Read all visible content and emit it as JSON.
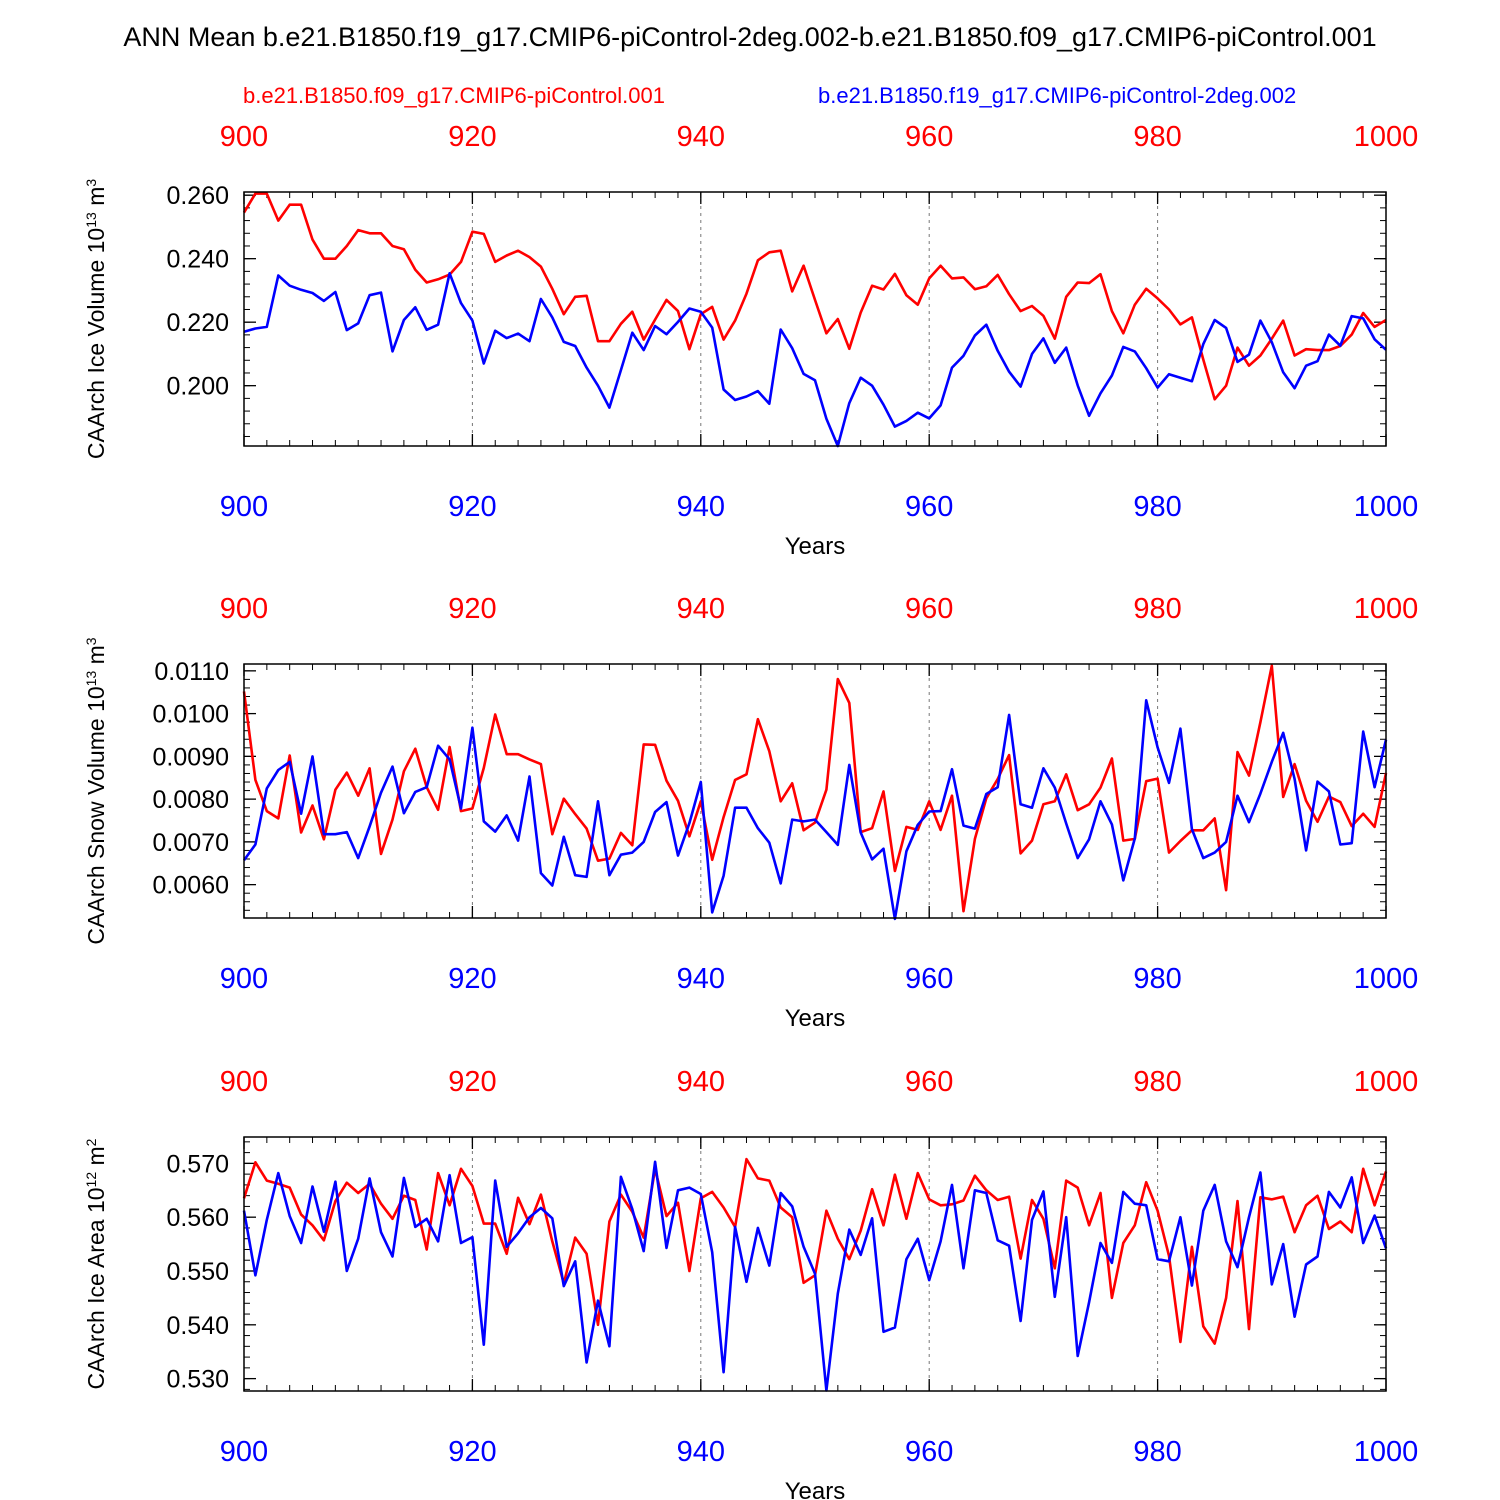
{
  "figure": {
    "title": "ANN Mean b.e21.B1850.f19_g17.CMIP6-piControl-2deg.002-b.e21.B1850.f09_g17.CMIP6-piControl.001",
    "legend": [
      {
        "label": "b.e21.B1850.f09_g17.CMIP6-piControl.001",
        "color": "#ff0000"
      },
      {
        "label": "b.e21.B1850.f19_g17.CMIP6-piControl-2deg.002",
        "color": "#0000ff"
      }
    ]
  },
  "chart_data": [
    {
      "type": "line",
      "ylabel": "CAArch Ice Volume 10",
      "ylabel_sup": "13",
      "ylabel_unit": " m",
      "ylabel_unit_sup": "3",
      "xlabel": "Years",
      "xlim": [
        900,
        1000
      ],
      "ylim": [
        0.181,
        0.261
      ],
      "xticks": [
        900,
        920,
        940,
        960,
        980,
        1000
      ],
      "xtick_labels": [
        "900",
        "920",
        "940",
        "960",
        "980",
        "1000"
      ],
      "yticks": [
        0.2,
        0.22,
        0.24,
        0.26
      ],
      "ytick_labels": [
        "0.200",
        "0.220",
        "0.240",
        "0.260"
      ],
      "yminor_step": 0.004,
      "x_start": 900,
      "series": [
        {
          "name": "b.e21.B1850.f09_g17.CMIP6-piControl.001",
          "color": "#ff0000",
          "values": [
            0.2545,
            0.2605,
            0.2605,
            0.252,
            0.257,
            0.257,
            0.246,
            0.24,
            0.24,
            0.244,
            0.249,
            0.248,
            0.248,
            0.244,
            0.243,
            0.2365,
            0.2325,
            0.2335,
            0.235,
            0.239,
            0.2485,
            0.2478,
            0.239,
            0.241,
            0.2425,
            0.2405,
            0.2375,
            0.2305,
            0.2225,
            0.228,
            0.2283,
            0.214,
            0.214,
            0.2195,
            0.2233,
            0.2145,
            0.2208,
            0.227,
            0.2235,
            0.2115,
            0.2225,
            0.2248,
            0.2145,
            0.2205,
            0.229,
            0.2395,
            0.242,
            0.2425,
            0.2297,
            0.2378,
            0.227,
            0.2165,
            0.221,
            0.2116,
            0.223,
            0.2315,
            0.2303,
            0.2352,
            0.2285,
            0.2255,
            0.2338,
            0.2378,
            0.2338,
            0.2341,
            0.2304,
            0.2313,
            0.2349,
            0.2288,
            0.2235,
            0.2251,
            0.222,
            0.2148,
            0.228,
            0.2325,
            0.2323,
            0.2351,
            0.2235,
            0.2165,
            0.2255,
            0.2305,
            0.2275,
            0.224,
            0.2193,
            0.2215,
            0.2082,
            0.1957,
            0.2,
            0.212,
            0.2063,
            0.2095,
            0.2148,
            0.2205,
            0.2095,
            0.2115,
            0.2112,
            0.2112,
            0.2125,
            0.2161,
            0.2229,
            0.2185,
            0.2207
          ]
        },
        {
          "name": "b.e21.B1850.f19_g17.CMIP6-piControl-2deg.002",
          "color": "#0000ff",
          "values": [
            0.217,
            0.218,
            0.2185,
            0.2347,
            0.2315,
            0.2302,
            0.2292,
            0.2267,
            0.2295,
            0.2175,
            0.2196,
            0.2285,
            0.2293,
            0.2108,
            0.2207,
            0.2247,
            0.2176,
            0.2192,
            0.2354,
            0.226,
            0.2205,
            0.207,
            0.2173,
            0.215,
            0.2164,
            0.214,
            0.2273,
            0.2215,
            0.2138,
            0.2125,
            0.2057,
            0.2,
            0.1931,
            0.2049,
            0.2167,
            0.2112,
            0.2188,
            0.2162,
            0.2201,
            0.2243,
            0.2233,
            0.2183,
            0.1988,
            0.1955,
            0.1966,
            0.1983,
            0.1943,
            0.2177,
            0.2118,
            0.2037,
            0.2017,
            0.1896,
            0.181,
            0.1945,
            0.2025,
            0.2,
            0.194,
            0.1871,
            0.1889,
            0.1915,
            0.1897,
            0.1938,
            0.2057,
            0.2094,
            0.2158,
            0.2192,
            0.211,
            0.2044,
            0.1997,
            0.21,
            0.2149,
            0.2072,
            0.212,
            0.2001,
            0.1905,
            0.1976,
            0.2032,
            0.2122,
            0.2108,
            0.2055,
            0.1994,
            0.2036,
            0.2025,
            0.2014,
            0.2131,
            0.2207,
            0.2182,
            0.2075,
            0.2098,
            0.2205,
            0.2137,
            0.2042,
            0.1992,
            0.2063,
            0.2077,
            0.2161,
            0.2126,
            0.2219,
            0.2212,
            0.2146,
            0.2113
          ]
        }
      ]
    },
    {
      "type": "line",
      "ylabel": "CAArch Snow Volume 10",
      "ylabel_sup": "13",
      "ylabel_unit": " m",
      "ylabel_unit_sup": "3",
      "xlabel": "Years",
      "xlim": [
        900,
        1000
      ],
      "ylim": [
        0.00522,
        0.01116
      ],
      "xticks": [
        900,
        920,
        940,
        960,
        980,
        1000
      ],
      "xtick_labels": [
        "900",
        "920",
        "940",
        "960",
        "980",
        "1000"
      ],
      "yticks": [
        0.006,
        0.007,
        0.008,
        0.009,
        0.01,
        0.011
      ],
      "ytick_labels": [
        "0.0060",
        "0.0070",
        "0.0080",
        "0.0090",
        "0.0100",
        "0.0110"
      ],
      "yminor_step": 0.0002,
      "x_start": 900,
      "series": [
        {
          "name": "b.e21.B1850.f09_g17.CMIP6-piControl.001",
          "color": "#ff0000",
          "values": [
            0.01052,
            0.00845,
            0.00772,
            0.00755,
            0.00902,
            0.00722,
            0.00785,
            0.00706,
            0.00822,
            0.00862,
            0.00808,
            0.00872,
            0.00672,
            0.00752,
            0.00865,
            0.00918,
            0.00828,
            0.00775,
            0.00922,
            0.00772,
            0.00778,
            0.00873,
            0.00998,
            0.00905,
            0.00905,
            0.00893,
            0.00882,
            0.00718,
            0.00801,
            0.00765,
            0.00731,
            0.00656,
            0.00661,
            0.00721,
            0.00692,
            0.00928,
            0.00927,
            0.00843,
            0.00796,
            0.00713,
            0.00795,
            0.00658,
            0.00758,
            0.00845,
            0.00858,
            0.00987,
            0.00912,
            0.00795,
            0.00837,
            0.00727,
            0.00745,
            0.00822,
            0.01081,
            0.01025,
            0.00723,
            0.00732,
            0.00818,
            0.00632,
            0.00735,
            0.00728,
            0.00795,
            0.00728,
            0.00808,
            0.00538,
            0.00707,
            0.00802,
            0.00847,
            0.00903,
            0.00673,
            0.00703,
            0.00788,
            0.00795,
            0.00858,
            0.00774,
            0.00788,
            0.00827,
            0.00895,
            0.00703,
            0.00707,
            0.00842,
            0.00848,
            0.00675,
            0.00702,
            0.00727,
            0.00727,
            0.00755,
            0.00587,
            0.0091,
            0.00855,
            0.0098,
            0.01112,
            0.00805,
            0.00882,
            0.00796,
            0.00747,
            0.00806,
            0.00793,
            0.00737,
            0.00766,
            0.00735,
            0.00861
          ]
        },
        {
          "name": "b.e21.B1850.f19_g17.CMIP6-piControl-2deg.002",
          "color": "#0000ff",
          "values": [
            0.00657,
            0.00694,
            0.00825,
            0.00868,
            0.00887,
            0.00766,
            0.009,
            0.00718,
            0.00718,
            0.00723,
            0.00662,
            0.00736,
            0.00815,
            0.00876,
            0.00767,
            0.00817,
            0.00828,
            0.00925,
            0.00893,
            0.00778,
            0.00967,
            0.00748,
            0.00724,
            0.00762,
            0.00703,
            0.00853,
            0.00627,
            0.00598,
            0.00712,
            0.00622,
            0.00618,
            0.00795,
            0.00622,
            0.0067,
            0.00675,
            0.007,
            0.0077,
            0.00793,
            0.00668,
            0.00744,
            0.0084,
            0.00535,
            0.00621,
            0.0078,
            0.0078,
            0.00732,
            0.00698,
            0.00603,
            0.00752,
            0.00748,
            0.00752,
            0.00723,
            0.00693,
            0.0088,
            0.00722,
            0.00659,
            0.00684,
            0.0052,
            0.00678,
            0.0074,
            0.00771,
            0.00772,
            0.0087,
            0.00738,
            0.00731,
            0.00812,
            0.00828,
            0.00997,
            0.00788,
            0.0078,
            0.00872,
            0.00827,
            0.00743,
            0.00662,
            0.00706,
            0.00795,
            0.00741,
            0.0061,
            0.00708,
            0.01031,
            0.00921,
            0.00838,
            0.00965,
            0.0073,
            0.00662,
            0.00675,
            0.007,
            0.00808,
            0.00746,
            0.00813,
            0.00887,
            0.00955,
            0.00847,
            0.0068,
            0.00841,
            0.00818,
            0.00694,
            0.00697,
            0.00958,
            0.00828,
            0.00939
          ]
        }
      ]
    },
    {
      "type": "line",
      "ylabel": "CAArch Ice Area 10",
      "ylabel_sup": "12",
      "ylabel_unit": " m",
      "ylabel_unit_sup": "2",
      "xlabel": "Years",
      "xlim": [
        900,
        1000
      ],
      "ylim": [
        0.5277,
        0.5749
      ],
      "xticks": [
        900,
        920,
        940,
        960,
        980,
        1000
      ],
      "xtick_labels": [
        "900",
        "920",
        "940",
        "960",
        "980",
        "1000"
      ],
      "yticks": [
        0.53,
        0.54,
        0.55,
        0.56,
        0.57
      ],
      "ytick_labels": [
        "0.530",
        "0.540",
        "0.550",
        "0.560",
        "0.570"
      ],
      "yminor_step": 0.002,
      "x_start": 900,
      "series": [
        {
          "name": "b.e21.B1850.f09_g17.CMIP6-piControl.001",
          "color": "#ff0000",
          "values": [
            0.5635,
            0.5702,
            0.5668,
            0.5662,
            0.5655,
            0.5605,
            0.5585,
            0.5557,
            0.563,
            0.5664,
            0.5645,
            0.5662,
            0.5625,
            0.5597,
            0.564,
            0.5632,
            0.554,
            0.5682,
            0.5622,
            0.569,
            0.5658,
            0.5588,
            0.5588,
            0.5532,
            0.5636,
            0.5587,
            0.5642,
            0.5555,
            0.5477,
            0.5562,
            0.5532,
            0.54,
            0.5592,
            0.5642,
            0.561,
            0.5562,
            0.569,
            0.5602,
            0.5627,
            0.55,
            0.5635,
            0.5647,
            0.5618,
            0.5582,
            0.5708,
            0.5672,
            0.5668,
            0.5618,
            0.56,
            0.5478,
            0.5492,
            0.5612,
            0.556,
            0.5522,
            0.5575,
            0.5652,
            0.5585,
            0.5679,
            0.5597,
            0.5682,
            0.5633,
            0.5622,
            0.5624,
            0.5631,
            0.5677,
            0.565,
            0.5632,
            0.5638,
            0.5523,
            0.5632,
            0.5597,
            0.5505,
            0.5668,
            0.5655,
            0.5585,
            0.5645,
            0.545,
            0.5552,
            0.5585,
            0.5665,
            0.5612,
            0.5528,
            0.5368,
            0.5545,
            0.5397,
            0.5365,
            0.545,
            0.563,
            0.5392,
            0.5637,
            0.5633,
            0.5638,
            0.5572,
            0.5622,
            0.564,
            0.5578,
            0.5592,
            0.5572,
            0.569,
            0.5622,
            0.5685
          ]
        },
        {
          "name": "b.e21.B1850.f19_g17.CMIP6-piControl-2deg.002",
          "color": "#0000ff",
          "values": [
            0.5612,
            0.5492,
            0.5595,
            0.5682,
            0.5602,
            0.5552,
            0.5657,
            0.5573,
            0.5666,
            0.55,
            0.556,
            0.5672,
            0.5572,
            0.5527,
            0.5673,
            0.5582,
            0.5597,
            0.5555,
            0.5678,
            0.5552,
            0.5563,
            0.5363,
            0.5668,
            0.5545,
            0.557,
            0.56,
            0.5617,
            0.5598,
            0.5472,
            0.5518,
            0.533,
            0.5445,
            0.536,
            0.5675,
            0.5615,
            0.5537,
            0.5703,
            0.5543,
            0.565,
            0.5655,
            0.5643,
            0.5535,
            0.5312,
            0.5582,
            0.548,
            0.558,
            0.551,
            0.5645,
            0.562,
            0.5545,
            0.5495,
            0.5278,
            0.5458,
            0.5577,
            0.553,
            0.5598,
            0.5387,
            0.5395,
            0.5522,
            0.556,
            0.5483,
            0.5555,
            0.566,
            0.5505,
            0.565,
            0.5645,
            0.5557,
            0.5547,
            0.5407,
            0.5595,
            0.5648,
            0.5452,
            0.56,
            0.5342,
            0.5442,
            0.5552,
            0.5515,
            0.5647,
            0.5625,
            0.5622,
            0.5522,
            0.5518,
            0.56,
            0.5473,
            0.5612,
            0.566,
            0.5555,
            0.5507,
            0.56,
            0.5683,
            0.5475,
            0.555,
            0.5415,
            0.5512,
            0.5527,
            0.5647,
            0.5618,
            0.5674,
            0.5552,
            0.5603,
            0.5542
          ]
        }
      ]
    }
  ]
}
